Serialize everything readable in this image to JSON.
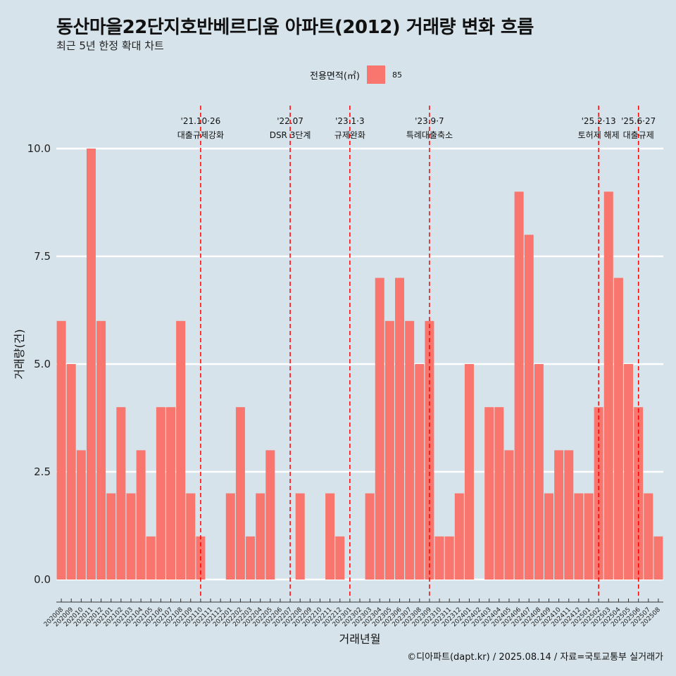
{
  "title": "동산마을22단지호반베르디움 아파트(2012) 거래량 변화 흐름",
  "subtitle": "최근 5년 한정 확대 차트",
  "legend": {
    "title": "전용면적(㎡)",
    "label": "85"
  },
  "caption": "©디아파트(dapt.kr) / 2025.08.14 / 자료=국토교통부 실거래가",
  "colors": {
    "bar": "#f8766d",
    "background": "#d6e3ea",
    "grid": "#ffffff",
    "event_line": "#ff0000"
  },
  "chart_data": {
    "type": "bar",
    "xlabel": "거래년월",
    "ylabel": "거래량(건)",
    "ylim": [
      0,
      10
    ],
    "yticks": [
      "0.0",
      "2.5",
      "5.0",
      "7.5",
      "10.0"
    ],
    "grid": true,
    "legend_position": "top",
    "categories": [
      "202008",
      "202009",
      "202010",
      "202011",
      "202012",
      "202101",
      "202102",
      "202103",
      "202104",
      "202105",
      "202106",
      "202107",
      "202108",
      "202109",
      "202110",
      "202111",
      "202112",
      "202201",
      "202202",
      "202203",
      "202204",
      "202205",
      "202206",
      "202207",
      "202208",
      "202209",
      "202210",
      "202211",
      "202212",
      "202301",
      "202302",
      "202303",
      "202304",
      "202305",
      "202306",
      "202307",
      "202308",
      "202309",
      "202310",
      "202311",
      "202312",
      "202401",
      "202402",
      "202403",
      "202404",
      "202405",
      "202406",
      "202407",
      "202408",
      "202409",
      "202410",
      "202411",
      "202412",
      "202501",
      "202502",
      "202503",
      "202504",
      "202505",
      "202506",
      "202507",
      "202508"
    ],
    "series": [
      {
        "name": "85",
        "values": [
          6,
          5,
          3,
          10,
          6,
          2,
          4,
          2,
          3,
          1,
          4,
          4,
          6,
          2,
          1,
          0,
          0,
          2,
          4,
          1,
          2,
          3,
          0,
          0,
          2,
          0,
          0,
          2,
          1,
          0,
          0,
          2,
          7,
          6,
          7,
          6,
          5,
          6,
          1,
          1,
          2,
          5,
          0,
          4,
          4,
          3,
          9,
          8,
          5,
          2,
          3,
          3,
          2,
          2,
          4,
          9,
          7,
          5,
          4,
          2,
          1
        ]
      }
    ],
    "annotations": [
      {
        "category": "202110",
        "date": "'21.10·26",
        "label": "대출규제강화"
      },
      {
        "category": "202207",
        "date": "'22.07",
        "label": "DSR 3단계"
      },
      {
        "category": "202301",
        "date": "'23.1·3",
        "label": "규제완화"
      },
      {
        "category": "202309",
        "date": "'23.9·7",
        "label": "특례대출축소"
      },
      {
        "category": "202502",
        "date": "'25.2·13",
        "label": "토허제 해제"
      },
      {
        "category": "202506",
        "date": "'25.6·27",
        "label": "대출규제"
      }
    ]
  }
}
